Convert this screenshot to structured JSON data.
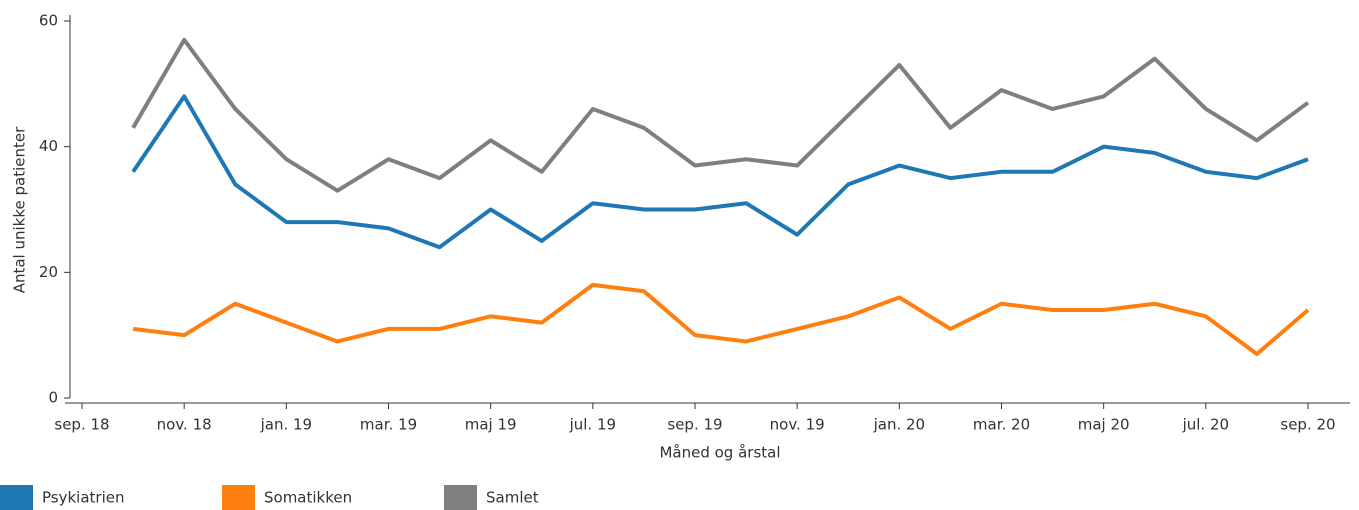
{
  "chart_data": {
    "type": "line",
    "x_label": "Måned og årstal",
    "y_label": "Antal unikke patienter",
    "x": [
      "2018-10",
      "2018-11",
      "2018-12",
      "2019-01",
      "2019-02",
      "2019-03",
      "2019-04",
      "2019-05",
      "2019-06",
      "2019-07",
      "2019-08",
      "2019-09",
      "2019-10",
      "2019-11",
      "2019-12",
      "2020-01",
      "2020-02",
      "2020-03",
      "2020-04",
      "2020-05",
      "2020-06",
      "2020-07",
      "2020-08",
      "2020-09"
    ],
    "xlim": [
      "2018-09",
      "2020-09"
    ],
    "xticks": [
      {
        "value": "2018-09",
        "label": "sep. 18"
      },
      {
        "value": "2018-11",
        "label": "nov. 18"
      },
      {
        "value": "2019-01",
        "label": "jan. 19"
      },
      {
        "value": "2019-03",
        "label": "mar. 19"
      },
      {
        "value": "2019-05",
        "label": "maj 19"
      },
      {
        "value": "2019-07",
        "label": "jul. 19"
      },
      {
        "value": "2019-09",
        "label": "sep. 19"
      },
      {
        "value": "2019-11",
        "label": "nov. 19"
      },
      {
        "value": "2020-01",
        "label": "jan. 20"
      },
      {
        "value": "2020-03",
        "label": "mar. 20"
      },
      {
        "value": "2020-05",
        "label": "maj 20"
      },
      {
        "value": "2020-07",
        "label": "jul. 20"
      },
      {
        "value": "2020-09",
        "label": "sep. 20"
      }
    ],
    "ylim": [
      0,
      60
    ],
    "yticks": [
      0,
      20,
      40,
      60
    ],
    "grid": false,
    "legend": "bottom-left",
    "series": [
      {
        "name": "Psykiatrien",
        "color": "#1f77b4",
        "values": [
          36,
          48,
          34,
          28,
          28,
          27,
          24,
          30,
          25,
          31,
          30,
          30,
          31,
          26,
          34,
          37,
          35,
          36,
          36,
          40,
          39,
          36,
          35,
          38
        ]
      },
      {
        "name": "Somatikken",
        "color": "#ff7f0e",
        "values": [
          11,
          10,
          15,
          12,
          9,
          11,
          11,
          13,
          12,
          18,
          17,
          10,
          9,
          11,
          13,
          16,
          11,
          15,
          14,
          14,
          15,
          13,
          7,
          14
        ]
      },
      {
        "name": "Samlet",
        "color": "#7f7f7f",
        "values": [
          43,
          57,
          46,
          38,
          33,
          38,
          35,
          41,
          36,
          46,
          43,
          37,
          38,
          37,
          45,
          53,
          43,
          49,
          46,
          48,
          54,
          46,
          41,
          47
        ]
      }
    ]
  }
}
